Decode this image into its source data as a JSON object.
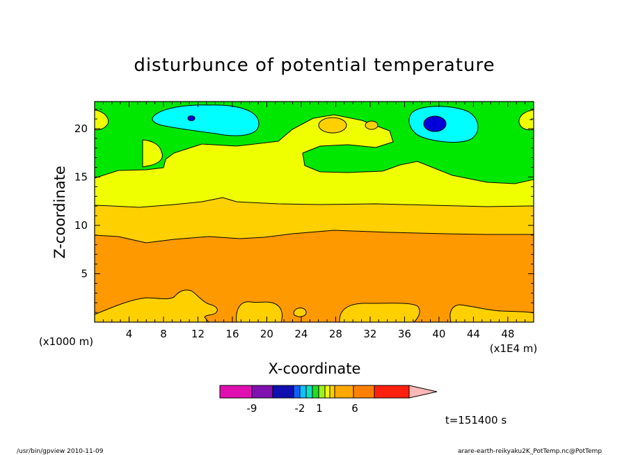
{
  "chart_data": {
    "type": "heatmap",
    "title": "disturbunce of potential temperature",
    "xlabel": "X-coordinate",
    "ylabel": "Z-coordinate",
    "x_unit": "(x1E4 m)",
    "y_unit": "(x1000 m)",
    "x_ticks": [
      "4",
      "8",
      "12",
      "16",
      "20",
      "24",
      "28",
      "32",
      "36",
      "40",
      "44",
      "48"
    ],
    "y_ticks": [
      "5",
      "10",
      "15",
      "20"
    ],
    "xlim": [
      0,
      51
    ],
    "ylim": [
      0,
      22.8
    ],
    "colorbar_labels": [
      "-9",
      "-2",
      "1",
      "6"
    ],
    "colorbar_colors": [
      "#e010b0",
      "#8010b0",
      "#1010b0",
      "#1060ff",
      "#10c0ff",
      "#10e0c0",
      "#20e020",
      "#a0f020",
      "#f0ff00",
      "#ffd000",
      "#ffa800",
      "#ff8000",
      "#ff2010",
      "#ff8080",
      "#ffb8b8"
    ],
    "fill_colors": {
      "deep_blue": "#0000d8",
      "cyan": "#00ffff",
      "green": "#00e800",
      "yellow": "#f0ff00",
      "gold": "#ffd000",
      "orange": "#ff9900"
    },
    "time_label": "t=151400 s"
  },
  "footer": {
    "left": "/usr/bin/gpview   2010-11-09",
    "right": "arare-earth-reikyaku2K_PotTemp.nc@PotTemp"
  }
}
